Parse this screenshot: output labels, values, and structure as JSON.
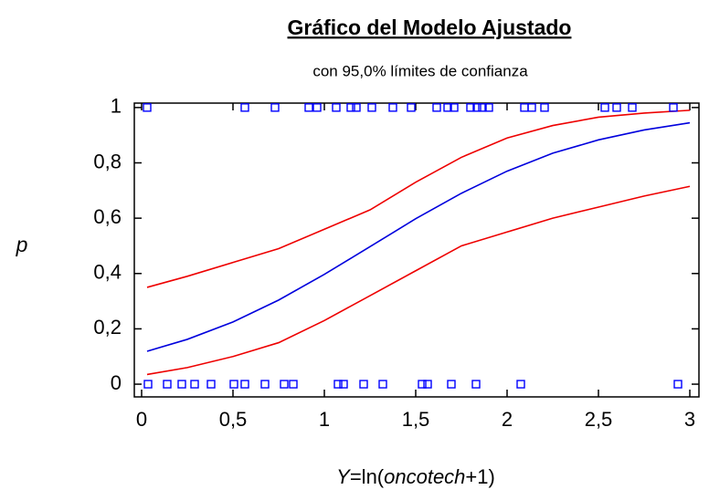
{
  "chart_data": {
    "type": "scatter",
    "title": "Gráfico del Modelo Ajustado",
    "subtitle": "con  95,0% límites de confianza",
    "y_label": "p",
    "x_label_parts": [
      "Y",
      "=ln(",
      "oncotech",
      "+1)"
    ],
    "xlim": [
      -0.04,
      3.05
    ],
    "ylim": [
      -0.046,
      1.016
    ],
    "xticks": [
      0,
      {
        "value": 0.5,
        "label": "0,5"
      },
      1,
      {
        "value": 1.5,
        "label": "1,5"
      },
      2,
      {
        "value": 2.5,
        "label": "2,5"
      },
      3
    ],
    "yticks": [
      0,
      {
        "value": 0.2,
        "label": "0,2"
      },
      {
        "value": 0.4,
        "label": "0,4"
      },
      {
        "value": 0.6,
        "label": "0,6"
      },
      {
        "value": 0.8,
        "label": "0,8"
      },
      1
    ],
    "points": {
      "color": "#0000ff",
      "x": [
        0.03,
        0.565,
        0.73,
        0.915,
        0.96,
        1.065,
        1.145,
        1.175,
        1.26,
        1.375,
        1.475,
        1.615,
        1.675,
        1.71,
        1.8,
        1.835,
        1.865,
        1.9,
        2.095,
        2.135,
        2.205,
        2.535,
        2.6,
        2.685,
        2.91,
        0.035,
        0.14,
        0.22,
        0.29,
        0.38,
        0.505,
        0.565,
        0.675,
        0.78,
        0.83,
        1.075,
        1.105,
        1.215,
        1.32,
        1.535,
        1.565,
        1.695,
        1.83,
        2.075,
        2.935
      ],
      "y": [
        1,
        1,
        1,
        1,
        1,
        1,
        1,
        1,
        1,
        1,
        1,
        1,
        1,
        1,
        1,
        1,
        1,
        1,
        1,
        1,
        1,
        1,
        1,
        1,
        1,
        0,
        0,
        0,
        0,
        0,
        0,
        0,
        0,
        0,
        0,
        0,
        0,
        0,
        0,
        0,
        0,
        0,
        0,
        0,
        0
      ]
    },
    "lines": [
      {
        "color": "#0000dd",
        "x": [
          0.03,
          0.25,
          0.5,
          0.75,
          1,
          1.25,
          1.5,
          1.75,
          2,
          2.25,
          2.5,
          2.75,
          3
        ],
        "values": [
          0.119,
          0.162,
          0.225,
          0.304,
          0.397,
          0.497,
          0.598,
          0.69,
          0.77,
          0.835,
          0.883,
          0.919,
          0.945
        ]
      },
      {
        "color": "#ee0000",
        "x": [
          0.03,
          0.25,
          0.5,
          0.75,
          1,
          1.25,
          1.5,
          1.75,
          2,
          2.25,
          2.5,
          2.75,
          3
        ],
        "values": [
          0.35,
          0.39,
          0.44,
          0.49,
          0.56,
          0.63,
          0.73,
          0.82,
          0.89,
          0.935,
          0.965,
          0.98,
          0.99
        ]
      },
      {
        "color": "#ee0000",
        "x": [
          0.03,
          0.25,
          0.5,
          0.75,
          1,
          1.25,
          1.5,
          1.75,
          2,
          2.25,
          2.5,
          2.75,
          3
        ],
        "values": [
          0.035,
          0.06,
          0.1,
          0.15,
          0.23,
          0.32,
          0.41,
          0.5,
          0.55,
          0.6,
          0.64,
          0.68,
          0.715
        ]
      }
    ]
  }
}
